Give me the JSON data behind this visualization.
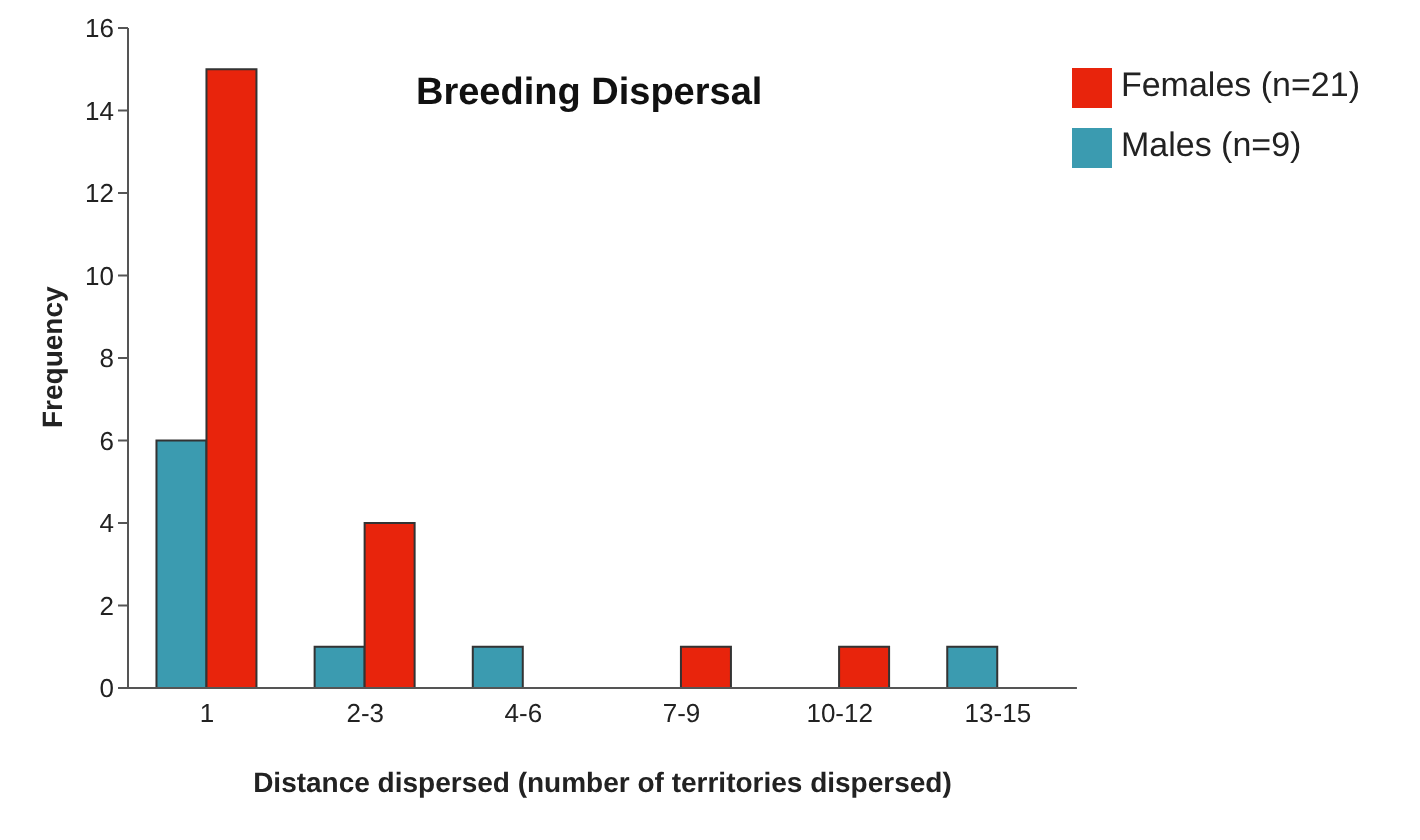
{
  "chart_data": {
    "type": "bar",
    "title": "Breeding Dispersal",
    "xlabel": "Distance dispersed (number of territories dispersed)",
    "ylabel": "Frequency",
    "categories": [
      "1",
      "2-3",
      "4-6",
      "7-9",
      "10-12",
      "13-15"
    ],
    "series": [
      {
        "name": "Males (n=9)",
        "color": "#3b9bb0",
        "values": [
          6,
          1,
          1,
          0,
          0,
          1
        ]
      },
      {
        "name": "Females (n=21)",
        "color": "#e8240c",
        "values": [
          15,
          4,
          0,
          1,
          1,
          0
        ]
      }
    ],
    "ylim": [
      0,
      16
    ],
    "yticks": [
      0,
      2,
      4,
      6,
      8,
      10,
      12,
      14,
      16
    ],
    "grid": false,
    "legend": "top right"
  }
}
